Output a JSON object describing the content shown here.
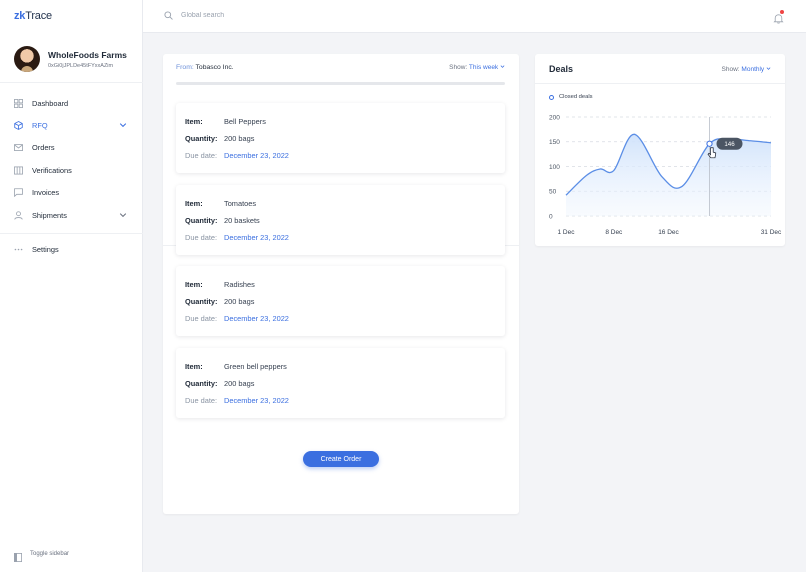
{
  "app": {
    "logo_prefix": "zk",
    "logo_suffix": "Trace"
  },
  "profile": {
    "name": "WholeFoods Farms",
    "address": "0xGi0jJPLDe45tFYxxAZim"
  },
  "nav": {
    "dashboard": "Dashboard",
    "rfq": "RFQ",
    "orders": "Orders",
    "verifications": "Verifications",
    "invoices": "Invoices",
    "shipments": "Shipments",
    "settings": "Settings"
  },
  "sidebar_footer": {
    "toggle": "Toggle sidebar"
  },
  "search": {
    "placeholder": "Global search"
  },
  "orders_panel": {
    "from_label": "From:",
    "from_value": "Tobasco Inc.",
    "show_label": "Show:",
    "show_value": "This week",
    "labels": {
      "item": "Item:",
      "quantity": "Quantity:",
      "due": "Due date:"
    },
    "cards": [
      {
        "item": "Bell Peppers",
        "quantity": "200 bags",
        "due": "December 23, 2022"
      },
      {
        "item": "Tomatoes",
        "quantity": "20 baskets",
        "due": "December 23, 2022"
      },
      {
        "item": "Radishes",
        "quantity": "200 bags",
        "due": "December 23, 2022"
      },
      {
        "item": "Green bell peppers",
        "quantity": "200 bags",
        "due": "December 23, 2022"
      }
    ],
    "button": "Create Order"
  },
  "deals": {
    "title": "Deals",
    "show_label": "Show:",
    "show_value": "Monthly",
    "legend": "Closed deals",
    "tooltip": "146"
  },
  "colors": {
    "accent": "#3b6fe0",
    "notification": "#ef4444"
  },
  "chart_data": {
    "type": "area",
    "series": [
      {
        "name": "Closed deals",
        "x": [
          0,
          3,
          5,
          7,
          10,
          14,
          17,
          21,
          24,
          27,
          30
        ],
        "values": [
          42,
          82,
          95,
          92,
          165,
          80,
          60,
          146,
          155,
          152,
          148
        ]
      }
    ],
    "x_ticks": [
      {
        "x": 0,
        "label": "1 Dec"
      },
      {
        "x": 7,
        "label": "8 Dec"
      },
      {
        "x": 15,
        "label": "16 Dec"
      },
      {
        "x": 30,
        "label": "31 Dec"
      }
    ],
    "y_ticks": [
      0,
      50,
      100,
      150,
      200
    ],
    "ylim": [
      0,
      200
    ],
    "highlight": {
      "x": 21,
      "value": 146
    },
    "grid": true
  }
}
